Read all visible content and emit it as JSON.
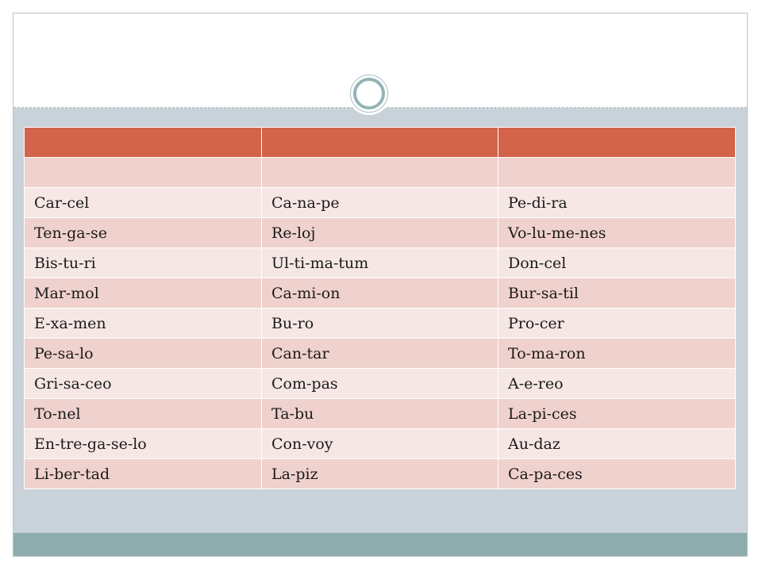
{
  "table": {
    "header": [
      "",
      "",
      ""
    ],
    "rows": [
      [
        "",
        "",
        ""
      ],
      [
        "Car-cel",
        "Ca-na-pe",
        "Pe-di-ra"
      ],
      [
        "Ten-ga-se",
        "Re-loj",
        "Vo-lu-me-nes"
      ],
      [
        "Bis-tu-ri",
        "Ul-ti-ma-tum",
        "Don-cel"
      ],
      [
        "Mar-mol",
        "Ca-mi-on",
        "Bur-sa-til"
      ],
      [
        "E-xa-men",
        "Bu-ro",
        "Pro-cer"
      ],
      [
        "Pe-sa-lo",
        "Can-tar",
        "To-ma-ron"
      ],
      [
        "Gri-sa-ceo",
        "Com-pas",
        "A-e-reo"
      ],
      [
        "To-nel",
        "Ta-bu",
        "La-pi-ces"
      ],
      [
        "En-tre-ga-se-lo",
        "Con-voy",
        "Au-daz"
      ],
      [
        "Li-ber-tad",
        "La-piz",
        "Ca-pa-ces"
      ]
    ]
  },
  "colors": {
    "header": "#d4634b",
    "row_dark": "#efd1cd",
    "row_light": "#f6e7e5",
    "background": "#c8d2d8",
    "footer_band": "#8cadac",
    "ring": "#94b3b7"
  },
  "icons": {
    "divider_ornament": "ring-icon"
  }
}
